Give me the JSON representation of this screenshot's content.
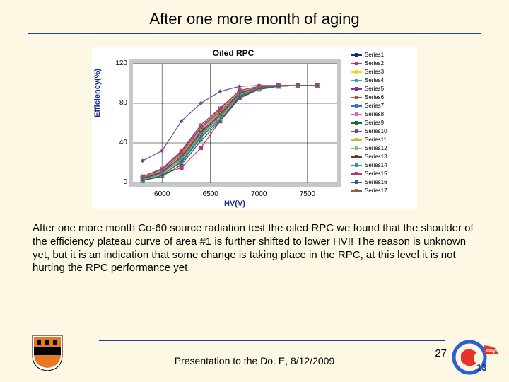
{
  "title": "After one more month of aging",
  "caption": "After one more month Co-60 source radiation test the oiled RPC we found that the shoulder of the efficiency plateau curve of area #1 is further shifted to lower HV!! The reason is unknown yet, but it is an indication that some change is taking place in the RPC, at this level it is not hurting the RPC performance yet.",
  "footer": "Presentation to the Do. E, 8/12/2009",
  "page_num": "27",
  "chart": {
    "type": "line",
    "title": "Oiled RPC",
    "xlabel": "HV(V)",
    "ylabel": "Efficiency(%)",
    "xlim": [
      5700,
      7800
    ],
    "ylim": [
      0,
      120
    ],
    "xticks": [
      6000,
      6500,
      7000,
      7500
    ],
    "yticks": [
      0,
      40,
      80,
      120
    ],
    "background_color": "#ffffff",
    "plot_outer_color": "#c6c7c9",
    "grid_color": "#000000",
    "series": [
      {
        "name": "Series1",
        "color": "#1a2a8a",
        "marker": "diamond",
        "data": [
          [
            5800,
            5
          ],
          [
            6000,
            10
          ],
          [
            6200,
            30
          ],
          [
            6400,
            52
          ],
          [
            6600,
            72
          ],
          [
            6800,
            90
          ],
          [
            7000,
            97
          ],
          [
            7200,
            98
          ],
          [
            7400,
            98
          ],
          [
            7600,
            98
          ]
        ]
      },
      {
        "name": "Series2",
        "color": "#d4287d",
        "marker": "square",
        "data": [
          [
            5800,
            3
          ],
          [
            6000,
            8
          ],
          [
            6200,
            15
          ],
          [
            6400,
            35
          ],
          [
            6600,
            62
          ],
          [
            6800,
            85
          ],
          [
            7000,
            94
          ],
          [
            7200,
            97
          ],
          [
            7400,
            98
          ],
          [
            7600,
            98
          ]
        ]
      },
      {
        "name": "Series3",
        "color": "#f5d322",
        "marker": "triangle",
        "data": [
          [
            5800,
            4
          ],
          [
            6000,
            12
          ],
          [
            6200,
            28
          ],
          [
            6400,
            55
          ],
          [
            6600,
            73
          ],
          [
            6800,
            92
          ],
          [
            7000,
            96
          ],
          [
            7200,
            97
          ],
          [
            7400,
            98
          ],
          [
            7600,
            98
          ]
        ]
      },
      {
        "name": "Series4",
        "color": "#2bb0a9",
        "marker": "x",
        "data": [
          [
            5800,
            2
          ],
          [
            6000,
            7
          ],
          [
            6200,
            23
          ],
          [
            6400,
            48
          ],
          [
            6600,
            65
          ],
          [
            6800,
            90
          ],
          [
            7000,
            95
          ],
          [
            7200,
            97
          ],
          [
            7400,
            98
          ],
          [
            7600,
            98
          ]
        ]
      },
      {
        "name": "Series5",
        "color": "#7a3a8f",
        "marker": "star",
        "data": [
          [
            5800,
            6
          ],
          [
            6000,
            14
          ],
          [
            6200,
            32
          ],
          [
            6400,
            58
          ],
          [
            6600,
            75
          ],
          [
            6800,
            93
          ],
          [
            7000,
            97
          ],
          [
            7200,
            98
          ],
          [
            7400,
            98
          ],
          [
            7600,
            98
          ]
        ]
      },
      {
        "name": "Series6",
        "color": "#a05a2c",
        "marker": "circle",
        "data": [
          [
            5800,
            5
          ],
          [
            6000,
            11
          ],
          [
            6200,
            25
          ],
          [
            6400,
            50
          ],
          [
            6600,
            68
          ],
          [
            6800,
            88
          ],
          [
            7000,
            96
          ],
          [
            7200,
            97
          ],
          [
            7400,
            98
          ],
          [
            7600,
            98
          ]
        ]
      },
      {
        "name": "Series7",
        "color": "#3a6fd4",
        "marker": "plus",
        "data": [
          [
            5800,
            3
          ],
          [
            6000,
            9
          ],
          [
            6200,
            20
          ],
          [
            6400,
            45
          ],
          [
            6600,
            66
          ],
          [
            6800,
            87
          ],
          [
            7000,
            95
          ],
          [
            7200,
            97
          ],
          [
            7400,
            98
          ],
          [
            7600,
            98
          ]
        ]
      },
      {
        "name": "Series8",
        "color": "#e0669e",
        "marker": "dash",
        "data": [
          [
            5800,
            4
          ],
          [
            6000,
            10
          ],
          [
            6200,
            27
          ],
          [
            6400,
            53
          ],
          [
            6600,
            70
          ],
          [
            6800,
            91
          ],
          [
            7000,
            96
          ],
          [
            7200,
            98
          ],
          [
            7400,
            98
          ],
          [
            7600,
            98
          ]
        ]
      },
      {
        "name": "Series9",
        "color": "#1a6a32",
        "marker": "dash",
        "data": [
          [
            5800,
            2
          ],
          [
            6000,
            6
          ],
          [
            6200,
            18
          ],
          [
            6400,
            42
          ],
          [
            6600,
            62
          ],
          [
            6800,
            86
          ],
          [
            7000,
            94
          ],
          [
            7200,
            97
          ],
          [
            7400,
            98
          ],
          [
            7600,
            98
          ]
        ]
      },
      {
        "name": "Series10",
        "color": "#6a4a9a",
        "marker": "diamond",
        "data": [
          [
            5800,
            22
          ],
          [
            6000,
            32
          ],
          [
            6200,
            62
          ],
          [
            6400,
            80
          ],
          [
            6600,
            92
          ],
          [
            6800,
            97
          ],
          [
            7000,
            98
          ],
          [
            7200,
            98
          ],
          [
            7400,
            98
          ],
          [
            7600,
            98
          ]
        ]
      },
      {
        "name": "Series11",
        "color": "#c7b84a",
        "marker": "square",
        "data": [
          [
            5800,
            3
          ],
          [
            6000,
            8
          ],
          [
            6200,
            22
          ],
          [
            6400,
            47
          ],
          [
            6600,
            64
          ],
          [
            6800,
            89
          ],
          [
            7000,
            95
          ],
          [
            7200,
            97
          ],
          [
            7400,
            98
          ],
          [
            7600,
            98
          ]
        ]
      },
      {
        "name": "Series12",
        "color": "#8fbf8f",
        "marker": "triangle",
        "data": [
          [
            5800,
            5
          ],
          [
            6000,
            12
          ],
          [
            6200,
            30
          ],
          [
            6400,
            54
          ],
          [
            6600,
            71
          ],
          [
            6800,
            92
          ],
          [
            7000,
            97
          ],
          [
            7200,
            98
          ],
          [
            7400,
            98
          ],
          [
            7600,
            98
          ]
        ]
      },
      {
        "name": "Series13",
        "color": "#6a3a2a",
        "marker": "x",
        "data": [
          [
            5800,
            4
          ],
          [
            6000,
            10
          ],
          [
            6200,
            26
          ],
          [
            6400,
            51
          ],
          [
            6600,
            69
          ],
          [
            6800,
            90
          ],
          [
            7000,
            96
          ],
          [
            7200,
            97
          ],
          [
            7400,
            98
          ],
          [
            7600,
            98
          ]
        ]
      },
      {
        "name": "Series14",
        "color": "#3a9a8a",
        "marker": "star",
        "data": [
          [
            5800,
            3
          ],
          [
            6000,
            9
          ],
          [
            6200,
            24
          ],
          [
            6400,
            49
          ],
          [
            6600,
            67
          ],
          [
            6800,
            88
          ],
          [
            7000,
            95
          ],
          [
            7200,
            97
          ],
          [
            7400,
            98
          ],
          [
            7600,
            98
          ]
        ]
      },
      {
        "name": "Series15",
        "color": "#b4387c",
        "marker": "circle",
        "data": [
          [
            5800,
            6
          ],
          [
            6000,
            13
          ],
          [
            6200,
            31
          ],
          [
            6400,
            56
          ],
          [
            6600,
            74
          ],
          [
            6800,
            93
          ],
          [
            7000,
            97
          ],
          [
            7200,
            98
          ],
          [
            7400,
            98
          ],
          [
            7600,
            98
          ]
        ]
      },
      {
        "name": "Series16",
        "color": "#3a5a9a",
        "marker": "plus",
        "data": [
          [
            5800,
            2
          ],
          [
            6000,
            7
          ],
          [
            6200,
            21
          ],
          [
            6400,
            46
          ],
          [
            6600,
            63
          ],
          [
            6800,
            87
          ],
          [
            7000,
            95
          ],
          [
            7200,
            97
          ],
          [
            7400,
            98
          ],
          [
            7600,
            98
          ]
        ]
      },
      {
        "name": "Series17",
        "color": "#9a5a3a",
        "marker": "dash",
        "data": [
          [
            5800,
            5
          ],
          [
            6000,
            11
          ],
          [
            6200,
            29
          ],
          [
            6400,
            55
          ],
          [
            6600,
            72
          ],
          [
            6800,
            91
          ],
          [
            7000,
            96
          ],
          [
            7200,
            98
          ],
          [
            7400,
            98
          ],
          [
            7600,
            98
          ]
        ]
      }
    ]
  },
  "colors": {
    "page_bg": "#fdf8e4",
    "rule": "#2a3a8f"
  },
  "logos": {
    "left": {
      "shield_color": "#e87722",
      "border": "#000"
    },
    "right": {
      "ring_color": "#2b5fd4",
      "accent": "#e8332b",
      "text": "Daya Bay",
      "sub": "13"
    }
  }
}
